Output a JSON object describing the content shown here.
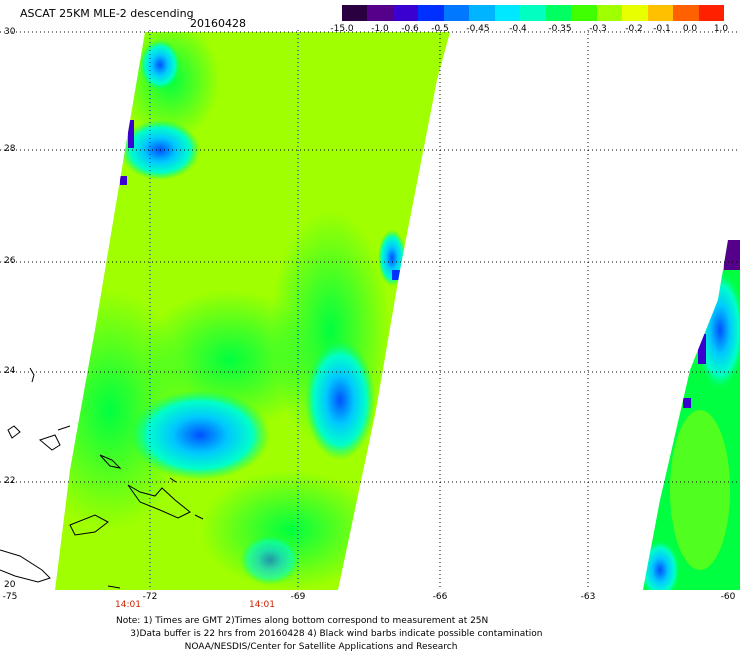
{
  "header": {
    "title": "ASCAT 25KM MLE-2 descending",
    "date": "20160428"
  },
  "colorbar": {
    "labels": [
      "-15.0",
      "-1.0",
      "-0.6",
      "-0.5",
      "-0.45",
      "-0.4",
      "-0.35",
      "-0.3",
      "-0.2",
      "-0.1",
      "0.0",
      "1.0"
    ],
    "colors": [
      "#2a0040",
      "#55008a",
      "#3a00d0",
      "#0030ff",
      "#0078ff",
      "#00b4ff",
      "#00e8ff",
      "#00ffc0",
      "#00ff60",
      "#40ff00",
      "#a0ff00",
      "#e8ff00",
      "#ffc000",
      "#ff6000",
      "#ff2000"
    ]
  },
  "map": {
    "lat_labels": [
      "30",
      "28",
      "26",
      "24",
      "22",
      "20"
    ],
    "lon_labels": [
      "-75",
      "-72",
      "-69",
      "-66",
      "-63",
      "-60"
    ],
    "time_labels": [
      "14:01",
      "14:01"
    ],
    "background_color": "#a0ff00"
  },
  "footer": {
    "note_line1": "Note: 1) Times are GMT 2)Times along bottom correspond to measurement at 25N",
    "note_line2": "     3)Data buffer is 22 hrs from 20160428 4) Black wind barbs indicate possible contamination",
    "note_line3": "                        NOAA/NESDIS/Center for Satellite Applications and Research"
  }
}
